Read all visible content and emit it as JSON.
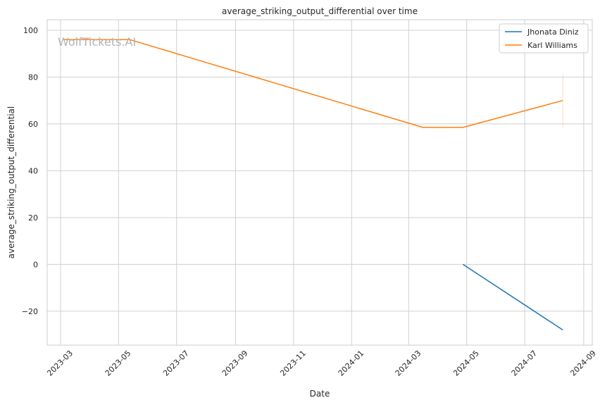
{
  "chart_data": {
    "type": "line",
    "title": "average_striking_output_differential over time",
    "xlabel": "Date",
    "ylabel": "average_striking_output_differential",
    "watermark": "WolfTickets.AI",
    "x_ticks": [
      "2023-03",
      "2023-05",
      "2023-07",
      "2023-09",
      "2023-11",
      "2024-01",
      "2024-03",
      "2024-05",
      "2024-07",
      "2024-09"
    ],
    "y_ticks": [
      100,
      80,
      60,
      40,
      20,
      0,
      -20
    ],
    "y_tick_labels": [
      "100",
      "80",
      "60",
      "40",
      "20",
      "0",
      "−20"
    ],
    "ylim": [
      -34.5,
      104.5
    ],
    "xlim": [
      "2023-02-15",
      "2024-09-10"
    ],
    "grid": true,
    "legend_position": "top-right",
    "series": [
      {
        "name": "Jhonata Diniz",
        "color": "#1f77b4",
        "points": [
          {
            "x": "2024-04-27",
            "y": 0
          },
          {
            "x": "2024-08-10",
            "y": -28
          }
        ]
      },
      {
        "name": "Karl Williams",
        "color": "#ff7f0e",
        "points": [
          {
            "x": "2023-03-04",
            "y": 96
          },
          {
            "x": "2023-05-13",
            "y": 96
          },
          {
            "x": "2024-03-16",
            "y": 58.5
          },
          {
            "x": "2024-04-27",
            "y": 58.5
          },
          {
            "x": "2024-08-10",
            "y": 70
          }
        ],
        "error_band": {
          "x": "2024-08-10",
          "low": 58.5,
          "high": 81.5
        }
      }
    ]
  }
}
